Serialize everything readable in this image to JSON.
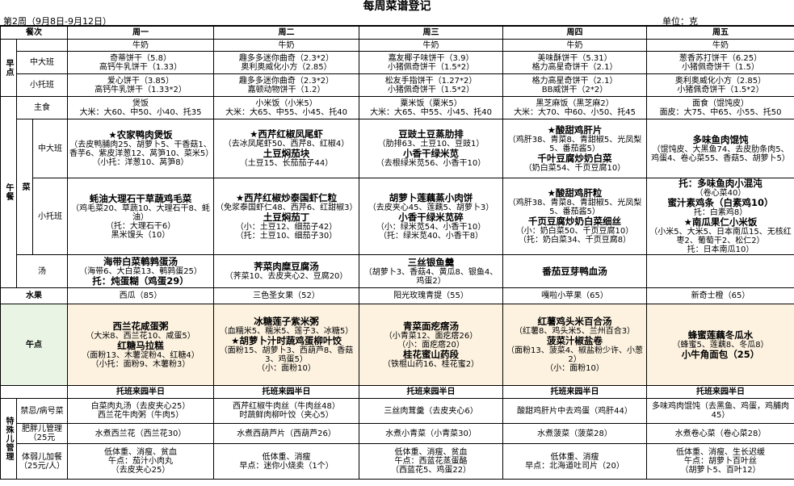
{
  "title": "每周菜谱登记",
  "week": "第2周（9月8日-9月12日）",
  "unit": "单位：克",
  "header": {
    "meal_label": "餐次",
    "days": [
      "周一",
      "周二",
      "周三",
      "周四",
      "周五"
    ]
  },
  "morning": {
    "label": "早点",
    "milk": [
      "牛奶",
      "牛奶",
      "牛奶",
      "牛奶",
      "牛奶"
    ],
    "big": {
      "label": "中大班",
      "cells": [
        [
          "奇蒂饼干（5.8）",
          "高钙牛乳饼干（1.33）"
        ],
        [
          "趣多多迷你曲奇（2.3*2）",
          "奥利奥威化小方（2.85）"
        ],
        [
          "嘉友椰子味饼干（3.9）",
          "小猪佩奇饼干（1.5*2）"
        ],
        [
          "美味酥饼干（5.31）",
          "格力高星奇饼干（2.1）"
        ],
        [
          "葱香苏打饼干（6.25）",
          "小猪佩奇饼干（1.5）"
        ]
      ]
    },
    "small": {
      "label": "小托班",
      "cells": [
        [
          "爱心饼干（3.85）",
          "高钙牛乳饼干（1.33*2）"
        ],
        [
          "趣多多迷你曲奇（2.3*2）",
          "嘉顿动物饼干（1.2）"
        ],
        [
          "松友手指饼干（1.27*2）",
          "小猪佩奇饼干（1.5*2）"
        ],
        [
          "格力高星奇饼干（2.1）",
          "BB威饼干（2*2）"
        ],
        [
          "奥利奥威化小方（2.85）",
          "小猪佩奇饼干（1.5*2）"
        ]
      ]
    }
  },
  "lunch": {
    "label": "午餐",
    "staple": {
      "label": "主食",
      "cells": [
        [
          "煲饭",
          "大米：大60、中50、小40、托35"
        ],
        [
          "小米饭（小米5）",
          "大米：大65、中55、小45、托40"
        ],
        [
          "粟米饭（粟米5）",
          "大米：大65、中55、小45、托40"
        ],
        [
          "黑芝麻饭（黑芝麻2）",
          "大米：大70、中60、小50、托45"
        ],
        [
          "面食（馄饨皮）",
          "面皮：大75、中65、小55、托50"
        ]
      ]
    },
    "dish_label": "菜",
    "big_label": "中大班",
    "small_label": "小托班",
    "soup_label": "汤",
    "big": [
      [
        "★农家鸭肉煲饭",
        "（去皮鸭脯肉25、胡萝卜5、干香菇1、香芋6、紫皮洋葱12、莴笋10、菜米5）",
        "（小托：洋葱10、莴笋8）"
      ],
      [
        "★西芹红椒凤尾虾",
        "（去冰凤尾虾50、西芹8、红椒4）",
        "土豆焖茄块",
        "（土豆15、长茄茄子44）"
      ],
      [
        "豆豉土豆蒸肋排",
        "（肋排63、土豆10、豆豉1）",
        "小香干绿米苋",
        "（去根绿米苋56、小香干10）"
      ],
      [
        "★酸甜鸡肝片",
        "（鸡肝38、青菜8、青甜椒5、光凤梨5、番茄酱5）",
        "千叶豆腐炒奶白菜",
        "（奶白菜54、千页豆腐10）"
      ],
      [
        "多味鱼肉馄饨",
        "（馄饨皮、大黑鱼74、去皮肋条肉5、鸡蛋4、卷心菜55、香菇5、胡萝卜5）"
      ]
    ],
    "small": [
      [
        "蚝油大理石干草蔬鸡毛菜",
        "（鸡毛菜20、草蔬10、大理石干8、蚝油）",
        "（托：大理石干6）",
        "黑米馒头（10）"
      ],
      [
        "★西芹红椒炒泰国虾仁粒",
        "（免浆泰国虾仁48、西芹6、红甜椒3）",
        "土豆焖茄丁",
        "（小：土豆12、细茄子42）",
        "（托：土豆10、细茄子30）"
      ],
      [
        "胡萝卜莲藕蒸小肉饼",
        "（去皮夹心45、莲藕5、胡萝卜3）",
        "小香干绿米苋碎",
        "（小：绿米苋54、小香干10）",
        "（托：绿米苋40、小香干8）"
      ],
      [
        "★酸甜鸡肝粒",
        "（鸡肝38、青菜8、青甜椒5、光凤梨5、番茄酱5）",
        "千页豆腐炒奶白菜细丝",
        "（小：奶白菜50、千页豆腐10）",
        "（托：奶白菜34、千页豆腐8）"
      ],
      [
        "托：多味鱼肉小混沌",
        "（卷心菜40）",
        "蜜汁素鸡条（白素鸡10）",
        "托：白素鸡8）",
        "★南瓜果仁小米饭",
        "（小米5、大米5、日本南瓜15、无核红枣2、葡萄干2、松仁2）",
        "托：日本南瓜10）"
      ]
    ],
    "soup": [
      [
        "海带白菜鹌鹑蛋汤",
        "（海带6、大白菜13、鹌鹑蛋25）",
        "托：炖蛋糊（鸡蛋29）"
      ],
      [
        "荠菜肉糜豆腐汤",
        "（荠菜10、去皮夹心2、豆腐20）"
      ],
      [
        "三丝银鱼羹",
        "（胡萝卜3、香菇4、黄瓜8、银鱼4、鸡蛋2）"
      ],
      [
        "番茄豆芽鸭血汤"
      ],
      []
    ]
  },
  "fruit": {
    "label": "水果",
    "cells": [
      "西瓜（85）",
      "三色圣女果（52）",
      "阳光玫瑰青提（55）",
      "嘎啦小苹果（65）",
      "新奇士橙（65）"
    ]
  },
  "snack": {
    "label": "午点",
    "cells": [
      [
        "西兰花咸蛋粥",
        "（大米8、西兰花10、咸蛋5）",
        "红糖马拉糕",
        "（面粉13、木薯淀粉4、红糖4）",
        "（小托：面粉9、木薯粉3）"
      ],
      [
        "冰糖莲子紫米粥",
        "（血糯米5、糯米5、莲子3、冰糖5）",
        "★胡萝卜汁时蔬鸡蛋柳叶饺",
        "（面粉15、胡萝卜3、西葫芦8、香菇3、鸡蛋5）",
        "（小：面粉10）"
      ],
      [
        "青菜面疙瘩汤",
        "（小青菜12、面疙瘩26）",
        "（小：面疙瘩20）",
        "桂花蜜山药段",
        "（铁棍山药16、桂花蜜2）"
      ],
      [
        "红薯鸡头米百合汤",
        "（红薯8、鸡头米5、兰州百合3）",
        "菠菜汁椒盐卷",
        "（面粉13、菠菜4、椒盐粉少许、小葱2）",
        "（小：面粉10）"
      ],
      [
        "蜂蜜莲藕冬瓜水",
        "（蜂蜜5、莲藕8、冬瓜8）",
        "小牛角面包（25）"
      ]
    ]
  },
  "leave_row": [
    "托班来园半日",
    "托班来园半日",
    "托班来园半日",
    "托班来园半日",
    "托班来园半日"
  ],
  "special": {
    "label": "特殊儿管理",
    "allergy": {
      "label": "禁忌/病号菜",
      "cells": [
        [
          "白菜肉丸汤（去皮夹心25）",
          "西兰花牛肉粥（牛肉5）"
        ],
        [
          "西芹红椒牛肉丝（牛肉丝48）",
          "时蔬鲜肉柳叶饺（夹心5）"
        ],
        [
          "三丝肉茸羹（去皮夹心6）"
        ],
        [
          "酸甜鸡肝片中去鸡蛋（鸡肝44）"
        ],
        [
          "多味鸡肉馄饨（去黑鱼、鸡蛋，鸡脯肉45）"
        ]
      ]
    },
    "obese": {
      "label": "肥胖儿管理（25元",
      "cells": [
        [
          "水煮西兰花（西兰花30）"
        ],
        [
          "水煮西葫芦片（西葫芦26）"
        ],
        [
          "水煮小青菜（小青菜30）"
        ],
        [
          "水煮菠菜（菠菜28）"
        ],
        [
          "水煮卷心菜（卷心菜28）"
        ]
      ]
    },
    "weak": {
      "label": "体弱儿加餐（25元/人）",
      "cells": [
        [
          "低体重、消瘦、贫血",
          "午点：茄汁小肉丸",
          "（去皮夹心25）"
        ],
        [
          "低体重、消瘦",
          "早点：迷你小烧卖（1个）"
        ],
        [
          "低体重、消瘦、贫血",
          "午点：西蓝花蒸蛋酪",
          "（西蓝花5、鸡蛋22）"
        ],
        [
          "低体重、消瘦",
          "早点：北海道吐司片（20）"
        ],
        [
          "低体重、消瘦、生长迟缓",
          "午点：胡萝卜百叶丝",
          "（胡萝卜5、百叶12）"
        ]
      ]
    }
  }
}
